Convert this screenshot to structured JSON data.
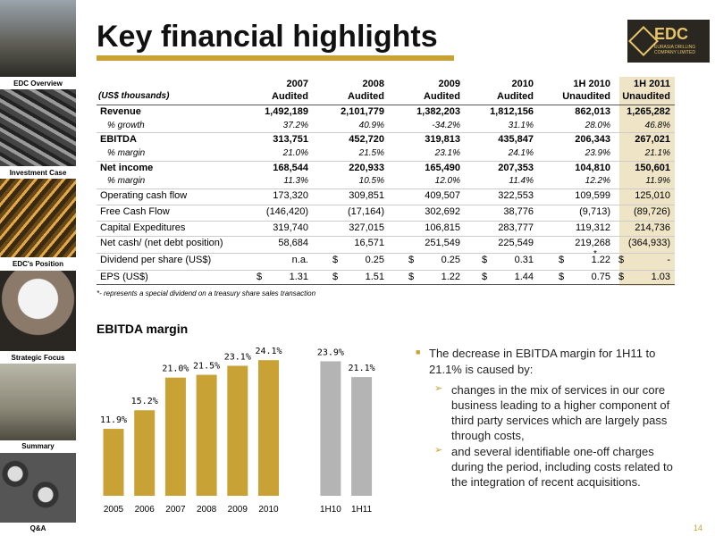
{
  "sidebar": {
    "items": [
      "EDC Overview",
      "Investment Case",
      "EDC's Position",
      "Strategic Focus",
      "Summary",
      "Q&A"
    ]
  },
  "header": {
    "title": "Key financial highlights",
    "logo": "EDC",
    "logo_sub": "EURASIA DRILLING COMPANY LIMITED"
  },
  "table": {
    "header": {
      "years": [
        "2007",
        "2008",
        "2009",
        "2010",
        "1H 2010",
        "1H 2011"
      ],
      "unit": "(US$ thousands)",
      "audit": [
        "Audited",
        "Audited",
        "Audited",
        "Audited",
        "Unaudited",
        "Unaudited"
      ]
    },
    "rows": [
      {
        "label": "Revenue",
        "cells": [
          "1,492,189",
          "2,101,779",
          "1,382,203",
          "1,812,156",
          "862,013",
          "1,265,282"
        ]
      },
      {
        "label": "% growth",
        "cells": [
          "37.2%",
          "40.9%",
          "-34.2%",
          "31.1%",
          "28.0%",
          "46.8%"
        ]
      },
      {
        "label": "EBITDA",
        "cells": [
          "313,751",
          "452,720",
          "319,813",
          "435,847",
          "206,343",
          "267,021"
        ]
      },
      {
        "label": "% margin",
        "cells": [
          "21.0%",
          "21.5%",
          "23.1%",
          "24.1%",
          "23.9%",
          "21.1%"
        ]
      },
      {
        "label": "Net income",
        "cells": [
          "168,544",
          "220,933",
          "165,490",
          "207,353",
          "104,810",
          "150,601"
        ]
      },
      {
        "label": "% margin",
        "cells": [
          "11.3%",
          "10.5%",
          "12.0%",
          "11.4%",
          "12.2%",
          "11.9%"
        ]
      },
      {
        "label": "Operating cash flow",
        "cells": [
          "173,320",
          "309,851",
          "409,507",
          "322,553",
          "109,599",
          "125,010"
        ]
      },
      {
        "label": "Free Cash Flow",
        "cells": [
          "(146,420)",
          "(17,164)",
          "302,692",
          "38,776",
          "(9,713)",
          "(89,726)"
        ]
      },
      {
        "label": "Capital Expeditures",
        "cells": [
          "319,740",
          "327,015",
          "106,815",
          "283,777",
          "119,312",
          "214,736"
        ]
      },
      {
        "label": "Net cash/ (net debt position)",
        "cells": [
          "58,684",
          "16,571",
          "251,549",
          "225,549",
          "219,268",
          "(364,933)"
        ]
      },
      {
        "label": "Dividend per share (US$)",
        "cells": [
          "n.a.",
          [
            "$",
            "0.25"
          ],
          [
            "$",
            "0.25"
          ],
          [
            "$",
            "0.31"
          ],
          [
            "$",
            "1.22"
          ],
          [
            "$",
            "-"
          ]
        ]
      },
      {
        "label": "EPS (US$)",
        "cells": [
          [
            "$",
            "1.31"
          ],
          [
            "$",
            "1.51"
          ],
          [
            "$",
            "1.22"
          ],
          [
            "$",
            "1.44"
          ],
          [
            "$",
            "0.75"
          ],
          [
            "$",
            "1.03"
          ]
        ]
      }
    ],
    "asterisk": "*",
    "footnote": "*- represents a special dividend on a treasury share sales transaction"
  },
  "chart_data": {
    "type": "bar",
    "title": "EBITDA margin",
    "categories": [
      "2005",
      "2006",
      "2007",
      "2008",
      "2009",
      "2010",
      null,
      "1H10",
      "1H11"
    ],
    "values": [
      11.9,
      15.2,
      21.0,
      21.5,
      23.1,
      24.1,
      null,
      23.9,
      21.1
    ],
    "value_labels": [
      "11.9%",
      "15.2%",
      "21.0%",
      "21.5%",
      "23.1%",
      "24.1%",
      null,
      "23.9%",
      "21.1%"
    ],
    "colors": [
      "#c9a236",
      "#c9a236",
      "#c9a236",
      "#c9a236",
      "#c9a236",
      "#c9a236",
      null,
      "#b4b4b4",
      "#b4b4b4"
    ]
  },
  "bullets": {
    "main": "The decrease in EBITDA margin for 1H11 to 21.1% is caused by:",
    "sub": [
      "changes in the mix of services in our core business leading to a higher component of third party services which are largely pass through costs,",
      "and several identifiable one-off charges during the period, including costs related to the integration of recent acquisitions."
    ]
  },
  "page_number": "14"
}
